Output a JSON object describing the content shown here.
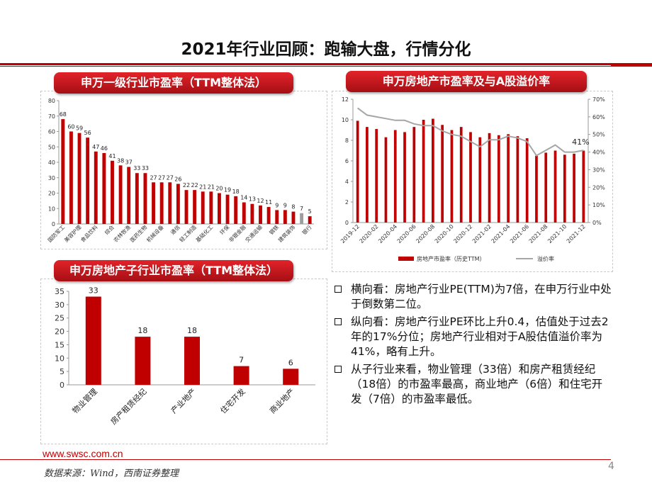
{
  "slide": {
    "title": "2021年行业回顾：跑输大盘，行情分化",
    "footer_url": "www.swsc.com.cn",
    "page_number": "4",
    "source_note": "数据来源：Wind，西南证券整理"
  },
  "colors": {
    "accent": "#c00000",
    "highlight_bar": "#9e9e9e",
    "line": "#a6a6a6"
  },
  "panels": {
    "industry_pe": {
      "banner": "申万一级行业市盈率（TTM整体法）"
    },
    "realestate_pe": {
      "banner": "申万房地产市盈率及与A股溢价率"
    },
    "sub_industry_pe": {
      "banner": "申万房地产子行业市盈率（TTM整体法）"
    }
  },
  "chart_data": [
    {
      "type": "bar",
      "title": "申万一级行业市盈率（TTM整体法）",
      "ylim": [
        0,
        80
      ],
      "yticks": [
        0,
        10,
        20,
        30,
        40,
        50,
        60,
        70,
        80
      ],
      "values": [
        68,
        60,
        59,
        56,
        47,
        46,
        41,
        38,
        37,
        33,
        33,
        27,
        27,
        27,
        26,
        22,
        22,
        21,
        21,
        20,
        19,
        18,
        14,
        13,
        12,
        11,
        9,
        9,
        8,
        7,
        5
      ],
      "labels": [
        "国防军工",
        "",
        "美容护理",
        "",
        "食品饮料",
        "",
        "综合",
        "",
        "农林牧渔",
        "",
        "医药生物",
        "",
        "机械设备",
        "",
        "通信",
        "",
        "轻工制造",
        "",
        "基础化工",
        "",
        "环保",
        "",
        "非银金融",
        "",
        "交通运输",
        "",
        "钢铁",
        "",
        "建筑装饰",
        "",
        "银行"
      ],
      "highlight_index": 29,
      "grid": false
    },
    {
      "type": "bar+line",
      "title": "申万房地产市盈率及与A股溢价率",
      "ylim_left": [
        0,
        12
      ],
      "yticks_left": [
        0,
        2,
        4,
        6,
        8,
        10,
        12
      ],
      "ylim_right": [
        0,
        70
      ],
      "yticks_right": [
        "0%",
        "10%",
        "20%",
        "30%",
        "40%",
        "50%",
        "60%",
        "70%"
      ],
      "x_tick_labels": [
        "2019-12",
        "2020-02",
        "2020-04",
        "2020-06",
        "2020-08",
        "2020-10",
        "2020-12",
        "2021-02",
        "2021-04",
        "2021-06",
        "2021-08",
        "2021-10",
        "2021-12"
      ],
      "series": [
        {
          "name": "房地产市盈率（历史TTM）",
          "type": "bar",
          "axis": "left",
          "values": [
            9.9,
            9.3,
            9.1,
            8.3,
            9.0,
            8.8,
            9.3,
            10.0,
            10.1,
            9.5,
            9.0,
            9.3,
            8.8,
            8.3,
            8.7,
            8.5,
            8.6,
            8.4,
            8.2,
            6.5,
            6.8,
            7.0,
            6.6,
            6.7,
            7.0
          ]
        },
        {
          "name": "溢价率",
          "type": "line",
          "axis": "right",
          "values": [
            65,
            61,
            60,
            59,
            58,
            58,
            56,
            55,
            55,
            52,
            50,
            49,
            46,
            43,
            47,
            47,
            49,
            48,
            46,
            38,
            41,
            44,
            40,
            40,
            41
          ]
        }
      ],
      "annotation": "41%",
      "legend": "bottom"
    },
    {
      "type": "bar",
      "title": "申万房地产子行业市盈率（TTM整体法）",
      "categories": [
        "物业管理",
        "房产租赁经纪",
        "产业地产",
        "住宅开发",
        "商业地产"
      ],
      "values": [
        33,
        18,
        18,
        7,
        6
      ],
      "ylim": [
        0,
        35
      ],
      "yticks": [
        0,
        5,
        10,
        15,
        20,
        25,
        30,
        35
      ],
      "grid": false
    }
  ],
  "bullets": [
    "横向看：房地产行业PE(TTM)为7倍，在申万行业中处于倒数第二位。",
    "纵向看：房地产行业PE环比上升0.4，估值处于过去2年的17%分位；房地产行业相对于A股估值溢价率为41%，略有上升。",
    "从子行业来看，物业管理（33倍）和房产租赁经纪（18倍）的市盈率最高，商业地产（6倍）和住宅开发（7倍）的市盈率最低。"
  ]
}
